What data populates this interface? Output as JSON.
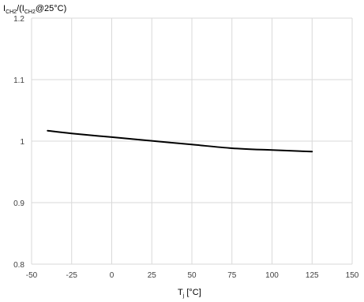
{
  "chart_data": {
    "type": "line",
    "title": "",
    "ylabel": {
      "base": "I",
      "sub1": "CH2",
      "mid": "/(I",
      "sub2": "CH2",
      "tail": "@25°C)"
    },
    "xlabel": {
      "base": "T",
      "sub": "j",
      "tail": " [°C]"
    },
    "xlim": [
      -50,
      150
    ],
    "ylim": [
      0.8,
      1.2
    ],
    "x_ticks": [
      -50,
      -25,
      0,
      25,
      50,
      75,
      100,
      125,
      150
    ],
    "y_ticks": [
      0.8,
      0.9,
      1,
      1.1,
      1.2
    ],
    "x_tick_labels": [
      "-50",
      "-25",
      "0",
      "25",
      "50",
      "75",
      "100",
      "125",
      "150"
    ],
    "y_tick_labels": [
      "0.8",
      "0.9",
      "1",
      "1.1",
      "1.2"
    ],
    "grid": true,
    "series": [
      {
        "color": "#000000",
        "x": [
          -40,
          -25,
          0,
          25,
          50,
          75,
          100,
          125
        ],
        "y": [
          1.017,
          1.0125,
          1.0065,
          1.0005,
          0.9945,
          0.9885,
          0.9855,
          0.983
        ]
      }
    ]
  }
}
